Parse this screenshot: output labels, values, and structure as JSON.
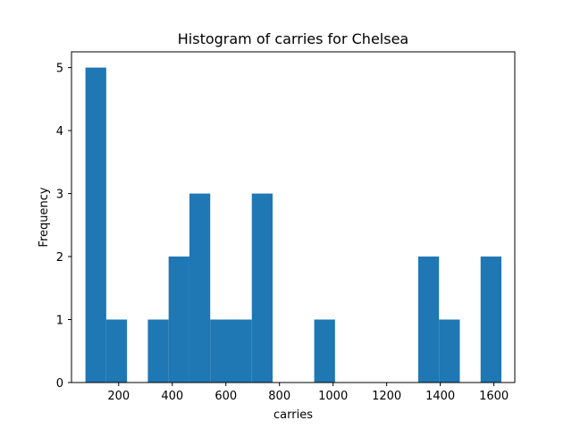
{
  "chart_data": {
    "type": "bar",
    "title": "Histogram of carries for Chelsea",
    "xlabel": "carries",
    "ylabel": "Frequency",
    "xlim": [
      24,
      1678
    ],
    "ylim": [
      0,
      5.25
    ],
    "x_ticks": [
      200,
      400,
      600,
      800,
      1000,
      1200,
      1400,
      1600
    ],
    "y_ticks": [
      0,
      1,
      2,
      3,
      4,
      5
    ],
    "bin_edges": [
      76,
      153.6,
      231.2,
      308.8,
      386.4,
      464,
      541.6,
      619.2,
      696.8,
      774.4,
      852,
      929.6,
      1007.2,
      1084.8,
      1162.4,
      1240,
      1317.6,
      1395.2,
      1472.8,
      1550.4,
      1628
    ],
    "values": [
      5,
      1,
      0,
      1,
      2,
      3,
      1,
      1,
      3,
      0,
      0,
      1,
      0,
      0,
      0,
      0,
      2,
      1,
      0,
      2
    ],
    "bar_color": "#1f77b4",
    "grid": false,
    "legend": "none"
  }
}
